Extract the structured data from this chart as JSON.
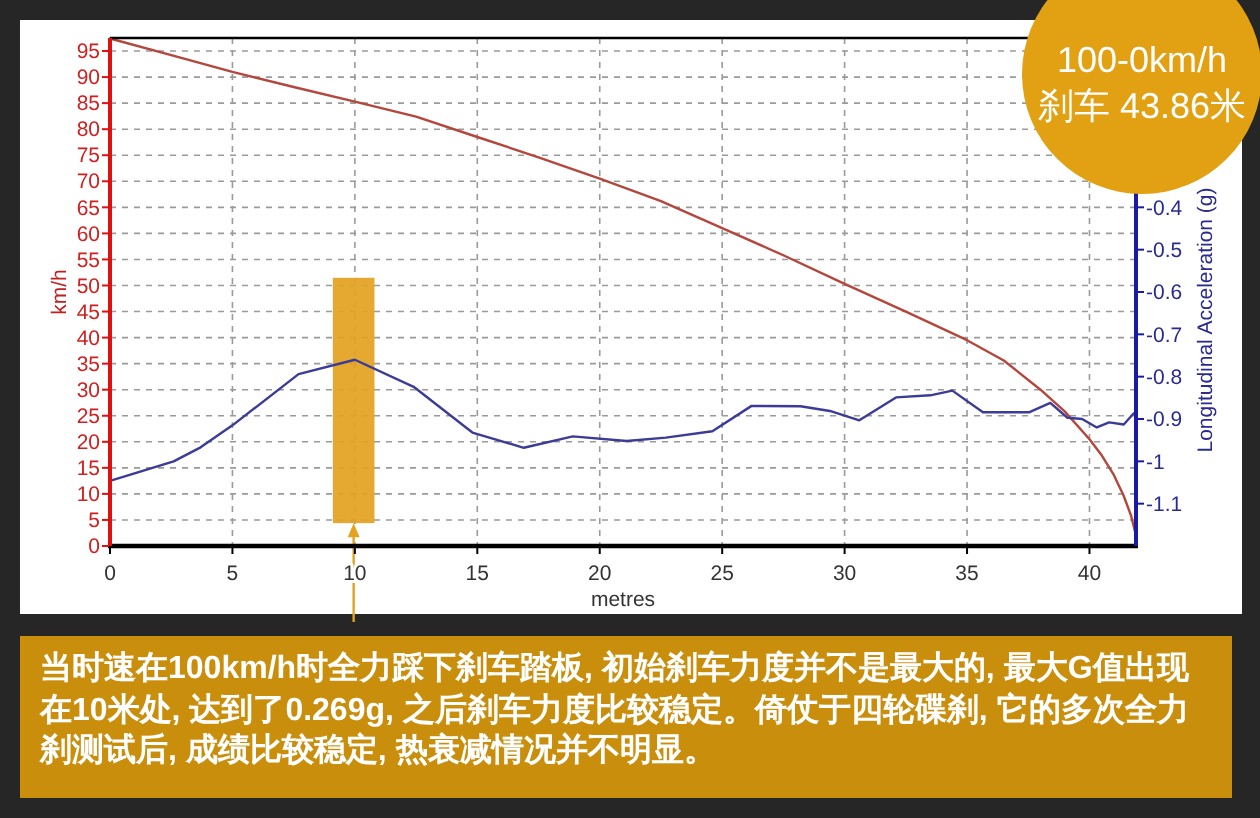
{
  "chart_data": {
    "type": "line",
    "xlabel": "metres",
    "ylabel": "km/h",
    "y2label": "Longitudinal Acceleration (g)",
    "annotations": [
      "100-0km/h",
      "刹车 43.86米",
      "当时速在100km/h时全力踩下刹车踏板, 初始刹车力度并不是最大的, 最大G值出现在10米处, 达到了0.269g, 之后刹车力度比较稳定。倚仗于四轮碟刹, 它的多次全力刹测试后, 成绩比较稳定, 热衰减情况并不明显。"
    ],
    "xlim": [
      0,
      41.9
    ],
    "xticks": [
      0,
      5,
      10,
      15,
      20,
      25,
      30,
      35,
      40
    ],
    "ylim": [
      0,
      97.5
    ],
    "yticks": [
      0,
      5,
      10,
      15,
      20,
      25,
      30,
      35,
      40,
      45,
      50,
      55,
      60,
      65,
      70,
      75,
      80,
      85,
      90,
      95
    ],
    "y2lim": [
      -1.2,
      0
    ],
    "y2ticks": [
      -1.1,
      -1,
      -0.9,
      -0.8,
      -0.7,
      -0.6,
      -0.5,
      -0.4
    ],
    "grid": true,
    "bands": [
      {
        "axis": "x",
        "from": 9.1,
        "to": 10.8,
        "color": "#e3a21f"
      }
    ],
    "series": [
      {
        "color": "#b4463c",
        "x": [
          0,
          2.5,
          5,
          7.5,
          10,
          12.5,
          15,
          17.5,
          20,
          22.5,
          25,
          27.5,
          30,
          32.5,
          35,
          36.5,
          38,
          39,
          40,
          40.5,
          41,
          41.4,
          41.7,
          41.9
        ],
        "values": [
          97.4,
          94.2,
          91,
          88.1,
          85.3,
          82.4,
          78.5,
          74.6,
          70.5,
          66.2,
          61,
          55.8,
          50.3,
          45,
          39.5,
          35.6,
          30,
          25.8,
          20.5,
          17.4,
          13.6,
          9.6,
          5.8,
          2
        ]
      },
      {
        "color": "#3b3b98",
        "axis": "y2",
        "x": [
          0,
          2.6,
          3.7,
          5,
          7.7,
          10,
          12.4,
          14.8,
          16.9,
          18.9,
          21.1,
          22.7,
          24.6,
          26.2,
          28.2,
          29.4,
          30.6,
          32.1,
          33.5,
          34.4,
          35.65,
          37.55,
          38.4,
          39.1,
          39.7,
          40.3,
          40.8,
          41.4,
          41.8
        ],
        "values": [
          -1.046,
          -1.0,
          -0.967,
          -0.915,
          -0.794,
          -0.76,
          -0.824,
          -0.932,
          -0.968,
          -0.941,
          -0.952,
          -0.944,
          -0.929,
          -0.869,
          -0.87,
          -0.881,
          -0.903,
          -0.849,
          -0.844,
          -0.833,
          -0.884,
          -0.884,
          -0.862,
          -0.897,
          -0.9,
          -0.92,
          -0.908,
          -0.913,
          -0.887
        ]
      }
    ]
  }
}
